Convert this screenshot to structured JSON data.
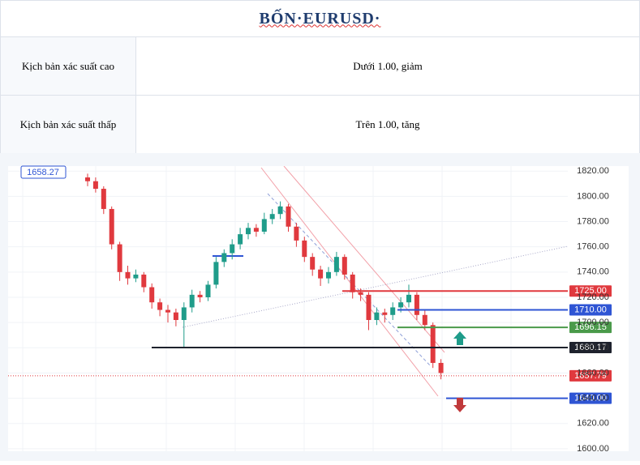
{
  "header": {
    "title": "BỐN·EURUSD·"
  },
  "table": {
    "rows": [
      [
        "Kịch bản xác suất cao",
        "Dưới 1.00, giảm"
      ],
      [
        "Kịch bản xác suất thấp",
        "Trên 1.00, tăng"
      ]
    ]
  },
  "chart_data": {
    "type": "candlestick",
    "up_color": "#1f9c8a",
    "down_color": "#e0393e",
    "open": [
      1815,
      1812,
      1806,
      1790,
      1762,
      1740,
      1735,
      1738,
      1728,
      1716,
      1710,
      1708,
      1702,
      1712,
      1722,
      1720,
      1730,
      1748,
      1755,
      1762,
      1770,
      1775,
      1772,
      1782,
      1786,
      1792,
      1776,
      1765,
      1752,
      1742,
      1735,
      1740,
      1752,
      1738,
      1724,
      1722,
      1702,
      1708,
      1706,
      1712,
      1716,
      1722,
      1706,
      1698,
      1668
    ],
    "high": [
      1818,
      1815,
      1808,
      1792,
      1764,
      1745,
      1742,
      1740,
      1731,
      1719,
      1714,
      1711,
      1716,
      1726,
      1725,
      1733,
      1752,
      1758,
      1766,
      1775,
      1779,
      1778,
      1787,
      1790,
      1796,
      1794,
      1779,
      1768,
      1755,
      1745,
      1744,
      1756,
      1754,
      1740,
      1727,
      1724,
      1712,
      1711,
      1716,
      1720,
      1730,
      1724,
      1710,
      1700,
      1671
    ],
    "low": [
      1808,
      1803,
      1786,
      1758,
      1733,
      1730,
      1732,
      1724,
      1711,
      1705,
      1700,
      1697,
      1680,
      1708,
      1716,
      1717,
      1727,
      1744,
      1750,
      1758,
      1766,
      1768,
      1770,
      1778,
      1782,
      1772,
      1760,
      1748,
      1737,
      1729,
      1731,
      1737,
      1734,
      1719,
      1717,
      1694,
      1698,
      1700,
      1702,
      1708,
      1712,
      1702,
      1694,
      1664,
      1655
    ],
    "close": [
      1812,
      1806,
      1790,
      1762,
      1740,
      1735,
      1738,
      1728,
      1716,
      1710,
      1708,
      1702,
      1712,
      1722,
      1720,
      1730,
      1748,
      1755,
      1762,
      1770,
      1775,
      1772,
      1782,
      1786,
      1792,
      1776,
      1765,
      1752,
      1742,
      1735,
      1740,
      1752,
      1738,
      1724,
      1722,
      1702,
      1708,
      1706,
      1712,
      1716,
      1722,
      1706,
      1698,
      1668,
      1660
    ],
    "ylim": [
      1598,
      1824
    ],
    "yticks": [
      {
        "value": 1600,
        "label": "1600.00"
      },
      {
        "value": 1620,
        "label": "1620.00"
      },
      {
        "value": 1640,
        "label": "1640.00"
      },
      {
        "value": 1660,
        "label": "1660.00"
      },
      {
        "value": 1680,
        "label": "1680.00"
      },
      {
        "value": 1700,
        "label": "1700.00"
      },
      {
        "value": 1720,
        "label": "1720.00"
      },
      {
        "value": 1740,
        "label": "1740.00"
      },
      {
        "value": 1760,
        "label": "1760.00"
      },
      {
        "value": 1780,
        "label": "1780.00"
      },
      {
        "value": 1800,
        "label": "1800.00"
      },
      {
        "value": 1820,
        "label": "1820.00"
      }
    ],
    "grid": true,
    "levels": [
      {
        "value": 1725,
        "label": "1725.00",
        "color": "#e0393e"
      },
      {
        "value": 1710,
        "label": "1710.00",
        "color": "#2f55d4"
      },
      {
        "value": 1696.15,
        "label": "1696.15",
        "color": "#4a9a4a"
      },
      {
        "value": 1680.17,
        "label": "1680.17",
        "color": "#1e222d"
      },
      {
        "value": 1657.79,
        "label": "1657.79",
        "color": "#e0393e",
        "style": "dotted"
      },
      {
        "value": 1640,
        "label": "1640.00",
        "color": "#2f55d4"
      }
    ],
    "marker_label": "1658.27"
  }
}
